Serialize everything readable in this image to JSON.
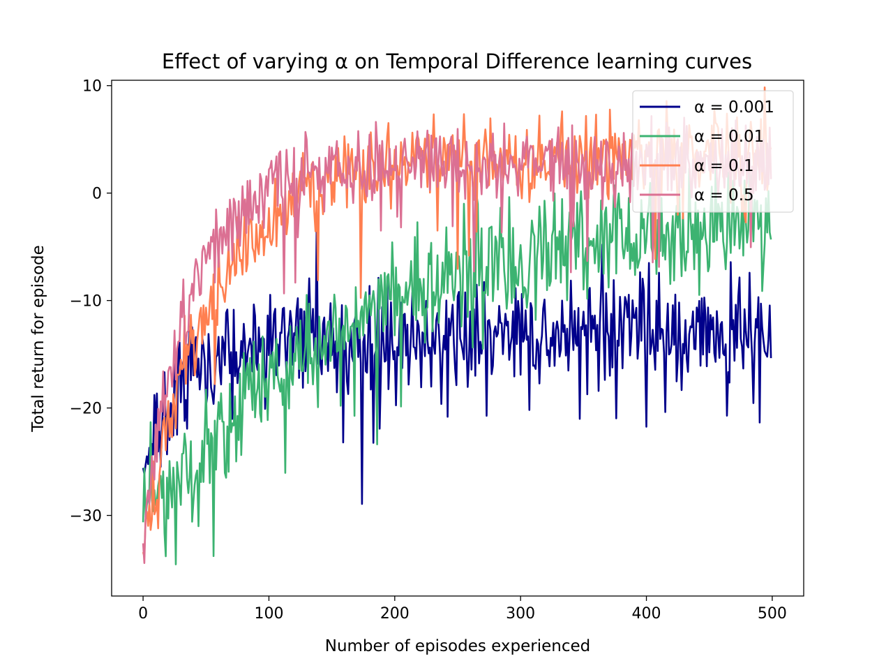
{
  "chart_data": {
    "type": "line",
    "title": "Effect of varying α on Temporal Difference learning curves",
    "xlabel": "Number of episodes experienced",
    "ylabel": "Total return for episode",
    "xlim": [
      -25,
      525
    ],
    "ylim": [
      -37.5,
      10.5
    ],
    "xticks": [
      0,
      100,
      200,
      300,
      400,
      500
    ],
    "xtick_labels": [
      "0",
      "100",
      "200",
      "300",
      "400",
      "500"
    ],
    "yticks": [
      10,
      0,
      -10,
      -20,
      -30
    ],
    "ytick_labels": [
      "10",
      "0",
      "−10",
      "−20",
      "−30"
    ],
    "grid": false,
    "legend_position": "upper right",
    "series": [
      {
        "name": "α = 0.001",
        "color": "#00008b",
        "start": -27,
        "plateau": -13.5,
        "tau": 25,
        "noise": 2.8
      },
      {
        "name": "α = 0.01",
        "color": "#3cb371",
        "start": -31,
        "plateau": -1.5,
        "tau": 160,
        "noise": 2.6
      },
      {
        "name": "α = 0.1",
        "color": "#ff7f50",
        "start": -33,
        "plateau": 3.5,
        "tau": 55,
        "noise": 2.0
      },
      {
        "name": "α = 0.5",
        "color": "#db7093",
        "start": -33,
        "plateau": 2.7,
        "tau": 35,
        "noise": 1.9
      }
    ]
  }
}
